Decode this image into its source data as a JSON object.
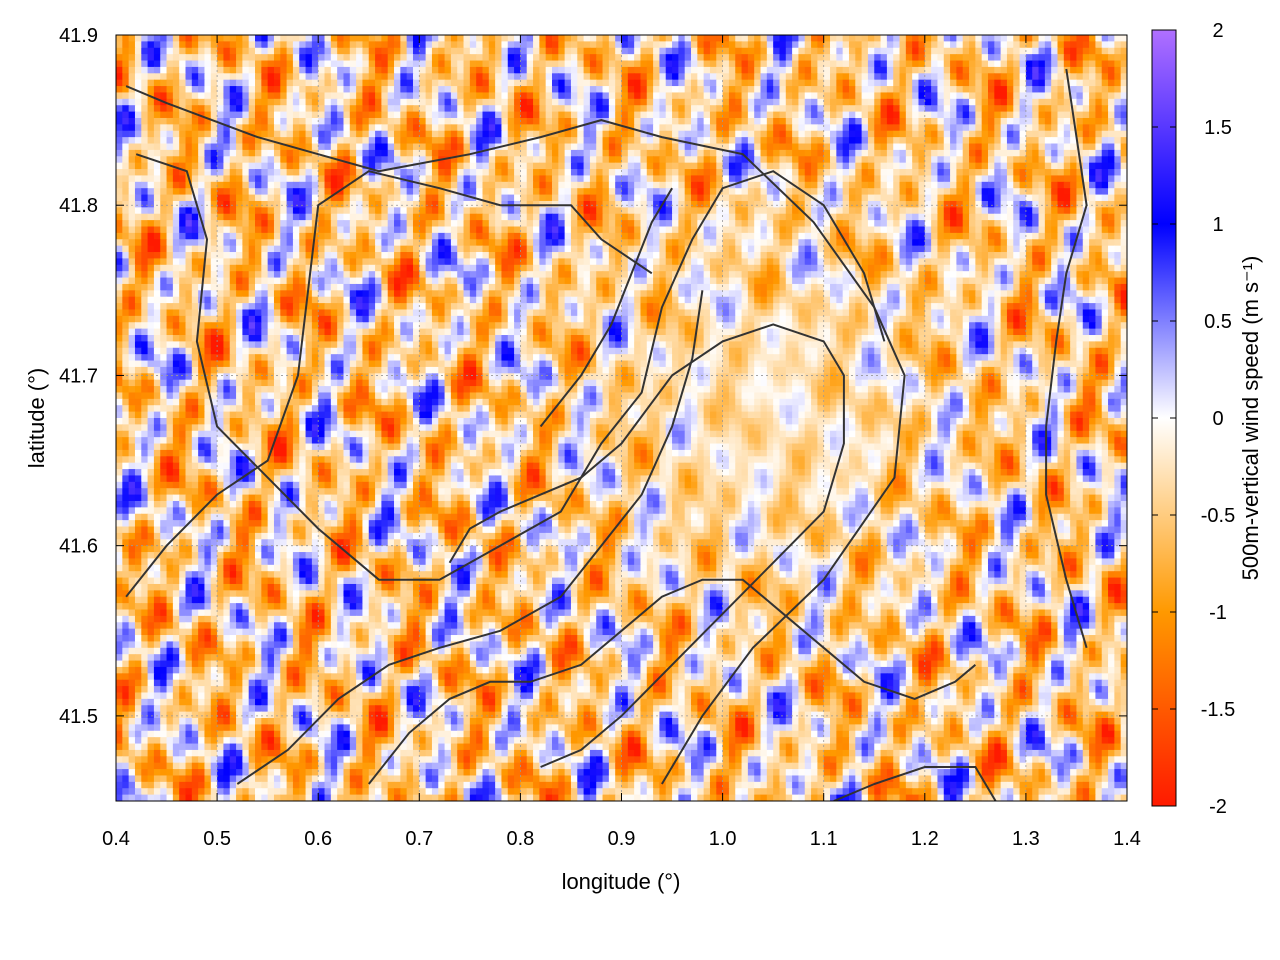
{
  "chart_data": {
    "type": "heatmap",
    "title": "",
    "xlabel": "longitude (°)",
    "ylabel": "latitude (°)",
    "colorbar_label": "500m-vertical wind speed (m s⁻¹)",
    "xlim": [
      0.4,
      1.4
    ],
    "ylim": [
      41.45,
      41.9
    ],
    "zlim": [
      -2,
      2
    ],
    "grid": true,
    "x_ticks": [
      "0.4",
      "0.5",
      "0.6",
      "0.7",
      "0.8",
      "0.9",
      "1.0",
      "1.1",
      "1.2",
      "1.3",
      "1.4"
    ],
    "y_ticks": [
      "41.5",
      "41.6",
      "41.7",
      "41.8",
      "41.9"
    ],
    "colorbar_ticks": [
      "2",
      "1.5",
      "1",
      "0.5",
      "0",
      "-0.5",
      "-1",
      "-1.5",
      "-2"
    ],
    "colormap": {
      "negative_max": "#ff1a00",
      "negative_mid": "#ff9900",
      "zero": "#ffffff",
      "positive_mid": "#0000ff",
      "positive_max": "#b070ff"
    },
    "contour_color": "#333333",
    "contours": [
      [
        [
          0.41,
          41.87
        ],
        [
          0.45,
          41.86
        ],
        [
          0.54,
          41.84
        ],
        [
          0.6,
          41.83
        ],
        [
          0.66,
          41.82
        ],
        [
          0.75,
          41.83
        ],
        [
          0.82,
          41.84
        ],
        [
          0.88,
          41.85
        ],
        [
          0.94,
          41.84
        ],
        [
          1.02,
          41.83
        ],
        [
          1.09,
          41.79
        ],
        [
          1.15,
          41.74
        ],
        [
          1.18,
          41.7
        ],
        [
          1.17,
          41.64
        ],
        [
          1.1,
          41.58
        ],
        [
          1.03,
          41.54
        ],
        [
          0.98,
          41.5
        ],
        [
          0.94,
          41.46
        ]
      ],
      [
        [
          0.42,
          41.83
        ],
        [
          0.47,
          41.82
        ],
        [
          0.49,
          41.78
        ],
        [
          0.48,
          41.72
        ],
        [
          0.5,
          41.67
        ],
        [
          0.55,
          41.64
        ],
        [
          0.6,
          41.61
        ],
        [
          0.66,
          41.58
        ],
        [
          0.72,
          41.58
        ],
        [
          0.78,
          41.6
        ],
        [
          0.84,
          41.62
        ],
        [
          0.88,
          41.66
        ],
        [
          0.92,
          41.69
        ],
        [
          0.94,
          41.74
        ],
        [
          0.97,
          41.78
        ],
        [
          1.0,
          41.81
        ],
        [
          1.05,
          41.82
        ],
        [
          1.1,
          41.8
        ],
        [
          1.14,
          41.76
        ],
        [
          1.16,
          41.72
        ]
      ],
      [
        [
          0.41,
          41.57
        ],
        [
          0.45,
          41.6
        ],
        [
          0.5,
          41.63
        ],
        [
          0.55,
          41.65
        ],
        [
          0.58,
          41.7
        ],
        [
          0.59,
          41.75
        ],
        [
          0.6,
          41.8
        ],
        [
          0.65,
          41.82
        ],
        [
          0.72,
          41.81
        ],
        [
          0.78,
          41.8
        ],
        [
          0.85,
          41.8
        ],
        [
          0.88,
          41.78
        ],
        [
          0.93,
          41.76
        ]
      ],
      [
        [
          0.73,
          41.59
        ],
        [
          0.75,
          41.61
        ],
        [
          0.78,
          41.62
        ],
        [
          0.82,
          41.63
        ],
        [
          0.86,
          41.64
        ],
        [
          0.9,
          41.66
        ],
        [
          0.95,
          41.7
        ],
        [
          1.0,
          41.72
        ],
        [
          1.05,
          41.73
        ],
        [
          1.1,
          41.72
        ],
        [
          1.12,
          41.7
        ],
        [
          1.12,
          41.66
        ],
        [
          1.1,
          41.62
        ],
        [
          1.05,
          41.59
        ],
        [
          1.0,
          41.56
        ],
        [
          0.95,
          41.53
        ],
        [
          0.9,
          41.5
        ],
        [
          0.86,
          41.48
        ],
        [
          0.82,
          41.47
        ]
      ],
      [
        [
          0.52,
          41.46
        ],
        [
          0.57,
          41.48
        ],
        [
          0.62,
          41.51
        ],
        [
          0.67,
          41.53
        ],
        [
          0.72,
          41.54
        ],
        [
          0.78,
          41.55
        ],
        [
          0.84,
          41.57
        ],
        [
          0.88,
          41.6
        ],
        [
          0.92,
          41.63
        ],
        [
          0.95,
          41.67
        ],
        [
          0.97,
          41.71
        ],
        [
          0.98,
          41.75
        ]
      ],
      [
        [
          0.65,
          41.46
        ],
        [
          0.69,
          41.49
        ],
        [
          0.73,
          41.51
        ],
        [
          0.77,
          41.52
        ],
        [
          0.81,
          41.52
        ],
        [
          0.86,
          41.53
        ],
        [
          0.9,
          41.55
        ],
        [
          0.94,
          41.57
        ],
        [
          0.98,
          41.58
        ],
        [
          1.02,
          41.58
        ],
        [
          1.06,
          41.56
        ],
        [
          1.1,
          41.54
        ],
        [
          1.14,
          41.52
        ],
        [
          1.19,
          41.51
        ],
        [
          1.23,
          41.52
        ],
        [
          1.25,
          41.53
        ]
      ],
      [
        [
          1.11,
          41.45
        ],
        [
          1.15,
          41.46
        ],
        [
          1.2,
          41.47
        ],
        [
          1.25,
          41.47
        ],
        [
          1.27,
          41.45
        ]
      ],
      [
        [
          1.34,
          41.88
        ],
        [
          1.35,
          41.84
        ],
        [
          1.36,
          41.8
        ],
        [
          1.34,
          41.76
        ],
        [
          1.33,
          41.72
        ],
        [
          1.32,
          41.67
        ],
        [
          1.32,
          41.63
        ],
        [
          1.34,
          41.58
        ],
        [
          1.36,
          41.54
        ]
      ],
      [
        [
          0.82,
          41.67
        ],
        [
          0.86,
          41.7
        ],
        [
          0.89,
          41.73
        ],
        [
          0.91,
          41.76
        ],
        [
          0.93,
          41.79
        ],
        [
          0.95,
          41.81
        ]
      ]
    ]
  }
}
